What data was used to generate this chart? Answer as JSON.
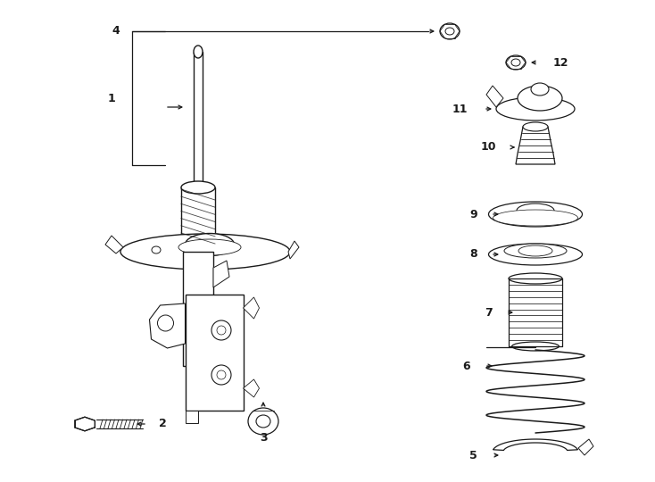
{
  "bg_color": "#ffffff",
  "line_color": "#1a1a1a",
  "fig_width": 7.34,
  "fig_height": 5.4,
  "dpi": 100
}
